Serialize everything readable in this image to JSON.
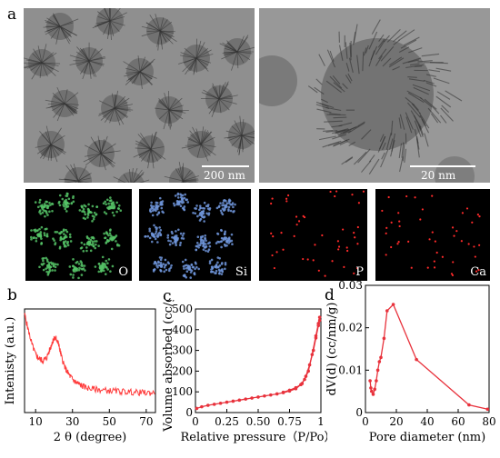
{
  "panels": {
    "a": {
      "letter": "a",
      "scale_left": "200 nm",
      "scale_right": "20 nm"
    },
    "eds": {
      "elements": [
        {
          "label": "O",
          "color": "#55c266"
        },
        {
          "label": "Si",
          "color": "#6f94d8"
        },
        {
          "label": "P",
          "color": "#ff2a2a"
        },
        {
          "label": "Ca",
          "color": "#ff2a2a"
        }
      ]
    },
    "b": {
      "letter": "b"
    },
    "c": {
      "letter": "c"
    },
    "d": {
      "letter": "d"
    }
  },
  "chart_data": [
    {
      "id": "b",
      "type": "line",
      "xlabel": "2 θ (degree)",
      "ylabel": "Intenisty (a.u.)",
      "xlim": [
        4,
        75
      ],
      "xticks": [
        10,
        30,
        50,
        70
      ],
      "series": [
        {
          "color": "#ff3b3b",
          "x": [
            4,
            6,
            8,
            10,
            12,
            14,
            16,
            18,
            19,
            20,
            21,
            22,
            23,
            24,
            26,
            28,
            30,
            32,
            34,
            36,
            40,
            45,
            50,
            55,
            60,
            65,
            70,
            75
          ],
          "y": [
            0.95,
            0.8,
            0.66,
            0.56,
            0.52,
            0.5,
            0.53,
            0.62,
            0.68,
            0.71,
            0.72,
            0.69,
            0.62,
            0.54,
            0.43,
            0.37,
            0.32,
            0.29,
            0.27,
            0.25,
            0.23,
            0.22,
            0.21,
            0.205,
            0.2,
            0.195,
            0.19,
            0.19
          ]
        }
      ]
    },
    {
      "id": "c",
      "type": "line",
      "xlabel": "Relative pressure（P/Po）",
      "ylabel": "Volume absorbed (cc/g)",
      "xlim": [
        0,
        1
      ],
      "ylim": [
        0,
        500
      ],
      "xticks": [
        "0",
        "0.25",
        "0.50",
        "0.75",
        "1"
      ],
      "yticks": [
        0,
        100,
        200,
        300,
        400,
        500
      ],
      "series": [
        {
          "color": "#e8323c",
          "x": [
            0.01,
            0.05,
            0.1,
            0.15,
            0.2,
            0.25,
            0.3,
            0.35,
            0.4,
            0.45,
            0.5,
            0.55,
            0.6,
            0.65,
            0.7,
            0.75,
            0.8,
            0.85,
            0.88,
            0.91,
            0.94,
            0.96,
            0.98,
            0.99
          ],
          "y": [
            20,
            28,
            35,
            40,
            45,
            50,
            55,
            60,
            65,
            70,
            75,
            80,
            85,
            90,
            96,
            104,
            115,
            140,
            175,
            230,
            300,
            360,
            420,
            445
          ]
        },
        {
          "color": "#e8323c",
          "x": [
            0.99,
            0.98,
            0.96,
            0.93,
            0.9,
            0.87,
            0.84,
            0.8,
            0.75,
            0.7
          ],
          "y": [
            460,
            430,
            370,
            280,
            200,
            160,
            135,
            120,
            108,
            98
          ]
        }
      ]
    },
    {
      "id": "d",
      "type": "line",
      "xlabel": "Pore diameter (nm)",
      "ylabel": "dV(d) (cc/nm/g)",
      "xlim": [
        0,
        80
      ],
      "ylim": [
        0,
        0.03
      ],
      "xticks": [
        0,
        20,
        40,
        60,
        80
      ],
      "yticks": [
        "0",
        "0.01",
        "0.02",
        "0.03"
      ],
      "series": [
        {
          "color": "#e8323c",
          "x": [
            3,
            3.5,
            4,
            5,
            6,
            7,
            8,
            9,
            10,
            12,
            14,
            18,
            33,
            67,
            79
          ],
          "y": [
            0.0075,
            0.0058,
            0.005,
            0.0043,
            0.0055,
            0.0075,
            0.01,
            0.012,
            0.013,
            0.0175,
            0.024,
            0.0255,
            0.0125,
            0.0018,
            0.0008
          ]
        }
      ]
    }
  ]
}
